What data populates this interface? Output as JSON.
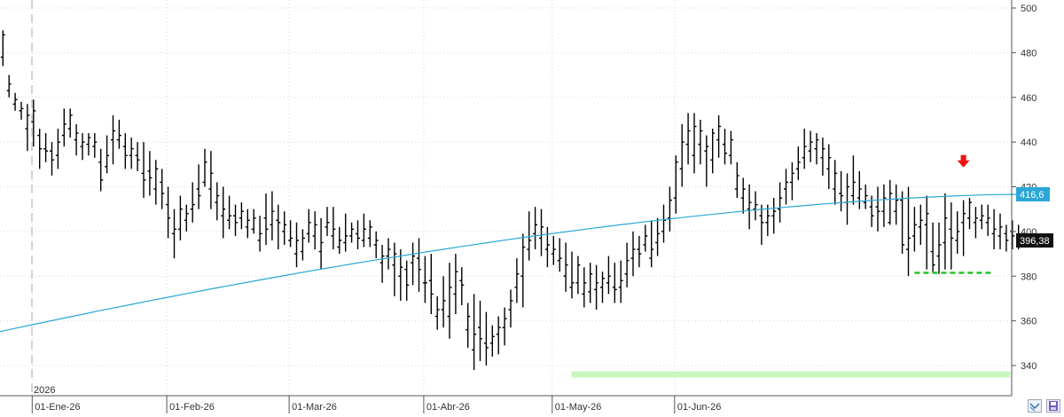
{
  "chart_data": {
    "type": "ohlc",
    "title": "",
    "xlabel": "",
    "ylabel": "",
    "ylim": [
      330,
      500
    ],
    "y_ticks": [
      340,
      360,
      380,
      400,
      420,
      440,
      460,
      480,
      500
    ],
    "grid": "dotted",
    "year_label": "2026",
    "x_labels": [
      {
        "label": "01-Ene-26",
        "bar": 0
      },
      {
        "label": "01-Feb-26",
        "bar": 22
      },
      {
        "label": "01-Mar-26",
        "bar": 42
      },
      {
        "label": "01-Abr-26",
        "bar": 64
      },
      {
        "label": "01-May-26",
        "bar": 85
      },
      {
        "label": "01-Jun-26",
        "bar": 105
      }
    ],
    "bars": [
      [
        478,
        490,
        474,
        488
      ],
      [
        463,
        470,
        460,
        466
      ],
      [
        457,
        462,
        454,
        459
      ],
      [
        454,
        458,
        450,
        455
      ],
      [
        446,
        457,
        436,
        452
      ],
      [
        449,
        459,
        438,
        454
      ],
      [
        443,
        446,
        428,
        437
      ],
      [
        437,
        444,
        431,
        436
      ],
      [
        436,
        440,
        425,
        432
      ],
      [
        434,
        446,
        428,
        440
      ],
      [
        443,
        455,
        438,
        448
      ],
      [
        446,
        455,
        442,
        452
      ],
      [
        441,
        448,
        434,
        444
      ],
      [
        438,
        444,
        432,
        440
      ],
      [
        439,
        444,
        434,
        442
      ],
      [
        438,
        444,
        433,
        440
      ],
      [
        431,
        437,
        418,
        423
      ],
      [
        429,
        443,
        426,
        434
      ],
      [
        441,
        452,
        430,
        445
      ],
      [
        441,
        450,
        437,
        443
      ],
      [
        438,
        444,
        428,
        434
      ],
      [
        434,
        442,
        428,
        437
      ],
      [
        434,
        440,
        427,
        432
      ],
      [
        426,
        440,
        415,
        423
      ],
      [
        427,
        436,
        416,
        424
      ],
      [
        419,
        432,
        412,
        428
      ],
      [
        422,
        428,
        410,
        417
      ],
      [
        412,
        420,
        397,
        406
      ],
      [
        399,
        410,
        388,
        401
      ],
      [
        401,
        416,
        396,
        410
      ],
      [
        405,
        412,
        400,
        408
      ],
      [
        410,
        422,
        404,
        412
      ],
      [
        419,
        430,
        410,
        416
      ],
      [
        422,
        437,
        420,
        431
      ],
      [
        419,
        436,
        410,
        426
      ],
      [
        413,
        422,
        405,
        416
      ],
      [
        407,
        420,
        397,
        410
      ],
      [
        405,
        416,
        401,
        407
      ],
      [
        407,
        412,
        398,
        404
      ],
      [
        406,
        413,
        401,
        409
      ],
      [
        402,
        410,
        397,
        405
      ],
      [
        401,
        410,
        399,
        406
      ],
      [
        396,
        407,
        391,
        399
      ],
      [
        406,
        417,
        394,
        401
      ],
      [
        403,
        418,
        396,
        409
      ],
      [
        405,
        412,
        392,
        404
      ],
      [
        400,
        409,
        394,
        403
      ],
      [
        396,
        405,
        393,
        397
      ],
      [
        390,
        404,
        384,
        396
      ],
      [
        391,
        401,
        387,
        397
      ],
      [
        399,
        410,
        395,
        404
      ],
      [
        398,
        409,
        392,
        403
      ],
      [
        391,
        406,
        383,
        395
      ],
      [
        402,
        411,
        398,
        404
      ],
      [
        398,
        411,
        392,
        401
      ],
      [
        393,
        402,
        390,
        396
      ],
      [
        395,
        408,
        391,
        398
      ],
      [
        398,
        404,
        395,
        401
      ],
      [
        399,
        405,
        392,
        397
      ],
      [
        396,
        408,
        393,
        401
      ],
      [
        397,
        405,
        393,
        402
      ],
      [
        394,
        400,
        388,
        396
      ],
      [
        386,
        394,
        377,
        389
      ],
      [
        389,
        397,
        383,
        392
      ],
      [
        385,
        395,
        371,
        390
      ],
      [
        380,
        392,
        369,
        384
      ],
      [
        383,
        387,
        369,
        376
      ],
      [
        386,
        395,
        376,
        389
      ],
      [
        388,
        397,
        373,
        383
      ],
      [
        377,
        389,
        368,
        377
      ],
      [
        378,
        390,
        363,
        372
      ],
      [
        362,
        371,
        356,
        365
      ],
      [
        365,
        380,
        357,
        369
      ],
      [
        362,
        386,
        352,
        375
      ],
      [
        372,
        390,
        363,
        382
      ],
      [
        378,
        384,
        367,
        376
      ],
      [
        356,
        368,
        348,
        362
      ],
      [
        347,
        372,
        338,
        354
      ],
      [
        357,
        369,
        342,
        352
      ],
      [
        350,
        364,
        340,
        348
      ],
      [
        350,
        358,
        344,
        353
      ],
      [
        354,
        362,
        345,
        357
      ],
      [
        357,
        366,
        349,
        361
      ],
      [
        365,
        374,
        357,
        369
      ],
      [
        375,
        388,
        368,
        381
      ],
      [
        380,
        399,
        366,
        393
      ],
      [
        392,
        409,
        387,
        396
      ],
      [
        399,
        411,
        392,
        403
      ],
      [
        397,
        410,
        389,
        402
      ],
      [
        392,
        402,
        384,
        394
      ],
      [
        390,
        398,
        385,
        392
      ],
      [
        387,
        397,
        382,
        388
      ],
      [
        380,
        395,
        373,
        385
      ],
      [
        375,
        391,
        370,
        377
      ],
      [
        377,
        389,
        372,
        385
      ],
      [
        372,
        384,
        366,
        377
      ],
      [
        373,
        386,
        368,
        381
      ],
      [
        374,
        385,
        365,
        377
      ],
      [
        375,
        382,
        368,
        379
      ],
      [
        377,
        389,
        372,
        380
      ],
      [
        375,
        386,
        368,
        374
      ],
      [
        375,
        387,
        368,
        378
      ],
      [
        381,
        395,
        375,
        387
      ],
      [
        388,
        400,
        380,
        392
      ],
      [
        392,
        398,
        384,
        390
      ],
      [
        394,
        403,
        391,
        398
      ],
      [
        388,
        405,
        384,
        392
      ],
      [
        395,
        406,
        389,
        399
      ],
      [
        400,
        412,
        395,
        405
      ],
      [
        406,
        420,
        400,
        414
      ],
      [
        415,
        434,
        408,
        431
      ],
      [
        428,
        448,
        420,
        440
      ],
      [
        439,
        453,
        430,
        445
      ],
      [
        434,
        453,
        426,
        447
      ],
      [
        439,
        450,
        430,
        445
      ],
      [
        436,
        443,
        420,
        438
      ],
      [
        432,
        446,
        426,
        444
      ],
      [
        441,
        452,
        433,
        447
      ],
      [
        439,
        446,
        430,
        435
      ],
      [
        434,
        445,
        430,
        441
      ],
      [
        419,
        431,
        415,
        425
      ],
      [
        415,
        424,
        408,
        419
      ],
      [
        410,
        421,
        401,
        413
      ],
      [
        410,
        418,
        405,
        412
      ],
      [
        407,
        412,
        394,
        404
      ],
      [
        404,
        412,
        398,
        407
      ],
      [
        407,
        415,
        399,
        409
      ],
      [
        410,
        422,
        404,
        415
      ],
      [
        419,
        428,
        412,
        422
      ],
      [
        422,
        431,
        414,
        426
      ],
      [
        428,
        438,
        423,
        431
      ],
      [
        433,
        446,
        428,
        438
      ],
      [
        436,
        445,
        431,
        440
      ],
      [
        437,
        444,
        430,
        441
      ],
      [
        433,
        442,
        425,
        437
      ],
      [
        428,
        439,
        419,
        433
      ],
      [
        419,
        432,
        412,
        426
      ],
      [
        417,
        427,
        409,
        416
      ],
      [
        413,
        426,
        403,
        420
      ],
      [
        416,
        434,
        412,
        422
      ],
      [
        415,
        427,
        410,
        419
      ],
      [
        413,
        421,
        410,
        416
      ],
      [
        411,
        416,
        402,
        407
      ],
      [
        411,
        420,
        400,
        409
      ],
      [
        409,
        421,
        402,
        415
      ],
      [
        404,
        423,
        403,
        417
      ],
      [
        409,
        421,
        403,
        414
      ],
      [
        414,
        418,
        390,
        394
      ],
      [
        392,
        420,
        380,
        397
      ],
      [
        398,
        411,
        391,
        403
      ],
      [
        402,
        412,
        394,
        405
      ],
      [
        403,
        416,
        383,
        408
      ],
      [
        391,
        404,
        382,
        385
      ],
      [
        389,
        404,
        381,
        394
      ],
      [
        395,
        417,
        383,
        406
      ],
      [
        401,
        413,
        383,
        397
      ],
      [
        396,
        409,
        390,
        400
      ],
      [
        404,
        414,
        389,
        408
      ],
      [
        406,
        415,
        401,
        413
      ],
      [
        404,
        411,
        397,
        406
      ],
      [
        405,
        412,
        401,
        407
      ],
      [
        404,
        412,
        398,
        406
      ],
      [
        399,
        410,
        392,
        401
      ],
      [
        398,
        408,
        392,
        402
      ],
      [
        399,
        403,
        391,
        396
      ],
      [
        400,
        405,
        392,
        398
      ],
      [
        396,
        403,
        392,
        396
      ]
    ],
    "ma": {
      "start": 355,
      "end": 416.6
    },
    "markers": {
      "last_price": "396,38",
      "ma_value": "416,6",
      "resistance_arrow_price": 431,
      "support_dashed_level": 381.5,
      "support_zone_level": 336
    },
    "colors": {
      "price": "#000000",
      "ma": "#2aa7d6",
      "support_zone": "#c9f7c0",
      "dashed": "#22c22a",
      "arrow": "#ee1111"
    }
  },
  "controls": {
    "left_icon": "chart-arrows-icon",
    "right_icon": "save-disk-icon"
  }
}
